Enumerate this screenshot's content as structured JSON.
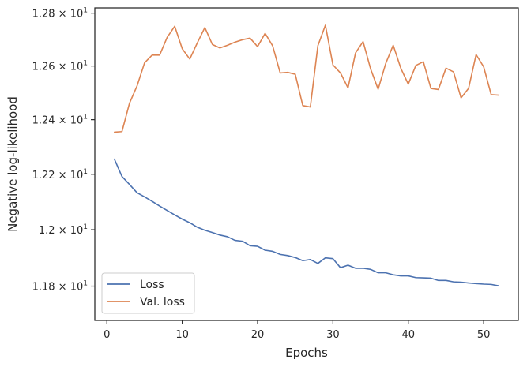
{
  "chart_data": {
    "type": "line",
    "xlabel": "Epochs",
    "ylabel": "Negative log-likelihood",
    "xlim": [
      -1.6,
      54.6
    ],
    "ylim": [
      11.68,
      12.82
    ],
    "y_scale": "log",
    "grid": false,
    "legend_position": "lower-left",
    "x_ticks": [
      {
        "value": 0,
        "label": "0"
      },
      {
        "value": 10,
        "label": "10"
      },
      {
        "value": 20,
        "label": "20"
      },
      {
        "value": 30,
        "label": "30"
      },
      {
        "value": 40,
        "label": "40"
      },
      {
        "value": 50,
        "label": "50"
      }
    ],
    "y_ticks": [
      {
        "value": 11.8,
        "mantissa": "1.18",
        "sep": "×",
        "base": "10",
        "exp": "1"
      },
      {
        "value": 12.0,
        "mantissa": "1.2",
        "sep": "×",
        "base": "10",
        "exp": "1"
      },
      {
        "value": 12.2,
        "mantissa": "1.22",
        "sep": "×",
        "base": "10",
        "exp": "1"
      },
      {
        "value": 12.4,
        "mantissa": "1.24",
        "sep": "×",
        "base": "10",
        "exp": "1"
      },
      {
        "value": 12.6,
        "mantissa": "1.26",
        "sep": "×",
        "base": "10",
        "exp": "1"
      },
      {
        "value": 12.8,
        "mantissa": "1.28",
        "sep": "×",
        "base": "10",
        "exp": "1"
      }
    ],
    "x": [
      1,
      2,
      3,
      4,
      5,
      6,
      7,
      8,
      9,
      10,
      11,
      12,
      13,
      14,
      15,
      16,
      17,
      18,
      19,
      20,
      21,
      22,
      23,
      24,
      25,
      26,
      27,
      28,
      29,
      30,
      31,
      32,
      33,
      34,
      35,
      36,
      37,
      38,
      39,
      40,
      41,
      42,
      43,
      44,
      45,
      46,
      47,
      48,
      49,
      50,
      51,
      52
    ],
    "series": [
      {
        "name": "Loss",
        "color": "#4c72b0",
        "values": [
          12.255,
          12.192,
          12.163,
          12.133,
          12.118,
          12.102,
          12.085,
          12.069,
          12.053,
          12.038,
          12.025,
          12.009,
          11.998,
          11.99,
          11.981,
          11.975,
          11.962,
          11.959,
          11.943,
          11.941,
          11.927,
          11.923,
          11.912,
          11.908,
          11.901,
          11.89,
          11.894,
          11.88,
          11.9,
          11.897,
          11.865,
          11.874,
          11.863,
          11.863,
          11.859,
          11.847,
          11.847,
          11.84,
          11.836,
          11.836,
          11.83,
          11.829,
          11.828,
          11.82,
          11.82,
          11.815,
          11.814,
          11.811,
          11.809,
          11.807,
          11.806,
          11.801
        ]
      },
      {
        "name": "Val. loss",
        "color": "#dd8452",
        "values": [
          12.354,
          12.356,
          12.461,
          12.525,
          12.612,
          12.641,
          12.641,
          12.708,
          12.75,
          12.665,
          12.626,
          12.687,
          12.745,
          12.681,
          12.668,
          12.678,
          12.69,
          12.699,
          12.705,
          12.673,
          12.723,
          12.676,
          12.574,
          12.576,
          12.569,
          12.452,
          12.447,
          12.676,
          12.754,
          12.604,
          12.574,
          12.518,
          12.649,
          12.692,
          12.589,
          12.513,
          12.609,
          12.678,
          12.592,
          12.532,
          12.602,
          12.616,
          12.516,
          12.512,
          12.592,
          12.578,
          12.481,
          12.516,
          12.643,
          12.597,
          12.493,
          12.491
        ]
      }
    ]
  }
}
